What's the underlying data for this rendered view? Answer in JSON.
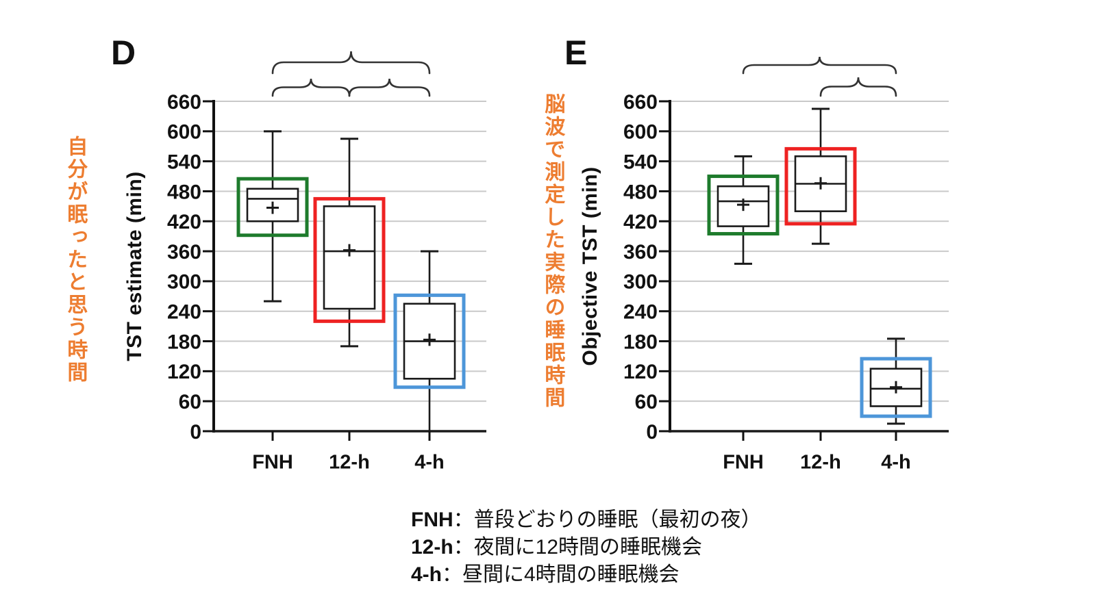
{
  "colors": {
    "orange_note": "#ED7D31",
    "highlight_green": "#1E7B2C",
    "highlight_red": "#EE2222",
    "highlight_blue": "#4D96D9",
    "box_stroke": "#1a1a1a",
    "gridline": "#c9c9c9",
    "brace": "#333333"
  },
  "chart_data": [
    {
      "type": "box",
      "panel_label": "D",
      "side_note": "自分が眠ったと思う時間",
      "ylabel": "TST estimate  (min)",
      "ylim": [
        0,
        660
      ],
      "ytick_step": 60,
      "grid": true,
      "categories": [
        "FNH",
        "12-h",
        "4-h"
      ],
      "series": [
        {
          "category": "FNH",
          "whisker_low": 260,
          "q1": 420,
          "median": 465,
          "mean": 447,
          "q3": 485,
          "whisker_high": 600,
          "cap_low": true,
          "highlight_name": "green",
          "highlight_color": "#1E7B2C",
          "highlight_range": [
            392,
            505
          ]
        },
        {
          "category": "12-h",
          "whisker_low": 170,
          "q1": 245,
          "median": 360,
          "mean": 362,
          "q3": 450,
          "whisker_high": 585,
          "cap_low": true,
          "highlight_name": "red",
          "highlight_color": "#EE2222",
          "highlight_range": [
            220,
            465
          ]
        },
        {
          "category": "4-h",
          "whisker_low": 0,
          "q1": 105,
          "median": 180,
          "mean": 183,
          "q3": 255,
          "whisker_high": 360,
          "cap_low": false,
          "highlight_name": "blue",
          "highlight_color": "#4D96D9",
          "highlight_range": [
            88,
            272
          ]
        }
      ],
      "comparison_braces": [
        {
          "pair": [
            0,
            2
          ],
          "row": 0
        },
        {
          "pair": [
            0,
            1
          ],
          "row": 1
        },
        {
          "pair": [
            1,
            2
          ],
          "row": 1
        }
      ]
    },
    {
      "type": "box",
      "panel_label": "E",
      "side_note": "脳波で測定した実際の睡眠時間",
      "ylabel": "Objective TST (min)",
      "ylim": [
        0,
        660
      ],
      "ytick_step": 60,
      "grid": true,
      "categories": [
        "FNH",
        "12-h",
        "4-h"
      ],
      "series": [
        {
          "category": "FNH",
          "whisker_low": 335,
          "q1": 410,
          "median": 460,
          "mean": 453,
          "q3": 490,
          "whisker_high": 550,
          "cap_low": true,
          "highlight_name": "green",
          "highlight_color": "#1E7B2C",
          "highlight_range": [
            395,
            510
          ]
        },
        {
          "category": "12-h",
          "whisker_low": 375,
          "q1": 440,
          "median": 495,
          "mean": 496,
          "q3": 550,
          "whisker_high": 645,
          "cap_low": true,
          "highlight_name": "red",
          "highlight_color": "#EE2222",
          "highlight_range": [
            415,
            565
          ]
        },
        {
          "category": "4-h",
          "whisker_low": 15,
          "q1": 50,
          "median": 85,
          "mean": 88,
          "q3": 125,
          "whisker_high": 185,
          "cap_low": true,
          "highlight_name": "blue",
          "highlight_color": "#4D96D9",
          "highlight_range": [
            30,
            145
          ]
        }
      ],
      "comparison_braces": [
        {
          "pair": [
            0,
            2
          ],
          "row": 0
        },
        {
          "pair": [
            1,
            2
          ],
          "row": 1
        }
      ]
    }
  ],
  "legend": [
    {
      "term": "FNH",
      "desc": "：普段どおりの睡眠（最初の夜）"
    },
    {
      "term": "12-h",
      "desc": "：夜間に12時間の睡眠機会"
    },
    {
      "term": "4-h",
      "desc": "：昼間に4時間の睡眠機会"
    }
  ]
}
